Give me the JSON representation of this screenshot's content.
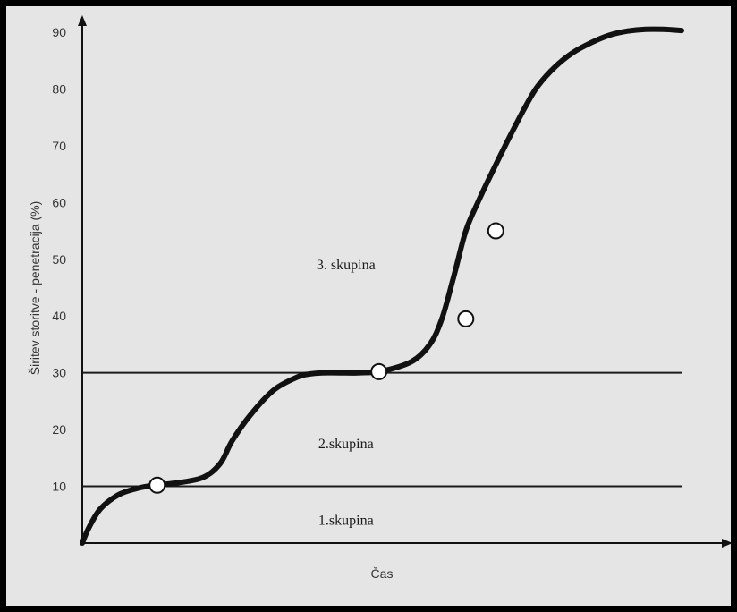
{
  "chart_data": {
    "type": "line",
    "xlabel": "Čas",
    "ylabel": "Širitev storitve - penetracija (%)",
    "ylim": [
      0,
      90
    ],
    "yticks": [
      10,
      20,
      30,
      40,
      50,
      60,
      70,
      80,
      90
    ],
    "xlim": [
      0,
      100
    ],
    "grid": false,
    "legend": "none",
    "thresholds": [
      10,
      30
    ],
    "region_labels": [
      {
        "text": "1.skupina",
        "x": 44,
        "y": 4
      },
      {
        "text": "2.skupina",
        "x": 44,
        "y": 17.5
      },
      {
        "text": "3. skupina",
        "x": 44,
        "y": 49
      }
    ],
    "series": [
      {
        "x": [
          0,
          1,
          3,
          6,
          9,
          12,
          15,
          20,
          23,
          25,
          28,
          32,
          36,
          38,
          40,
          43,
          46,
          50,
          55,
          58,
          60,
          62,
          64,
          66,
          68,
          70,
          72,
          74,
          76,
          79,
          82,
          85,
          88,
          91,
          94,
          97,
          100
        ],
        "y": [
          0,
          2.5,
          6,
          8.5,
          9.6,
          10.2,
          10.5,
          11.5,
          14,
          18,
          22.5,
          27,
          29.3,
          29.8,
          30,
          30,
          30,
          30.3,
          32,
          35,
          39.5,
          47,
          55,
          60,
          64.5,
          68.8,
          73,
          77,
          80.5,
          84,
          86.5,
          88.2,
          89.5,
          90.2,
          90.5,
          90.5,
          90.3
        ]
      }
    ],
    "markers": [
      {
        "x": 12.5,
        "y": 10.2
      },
      {
        "x": 49.5,
        "y": 30.2
      },
      {
        "x": 64,
        "y": 39.5
      },
      {
        "x": 69,
        "y": 55
      }
    ]
  }
}
